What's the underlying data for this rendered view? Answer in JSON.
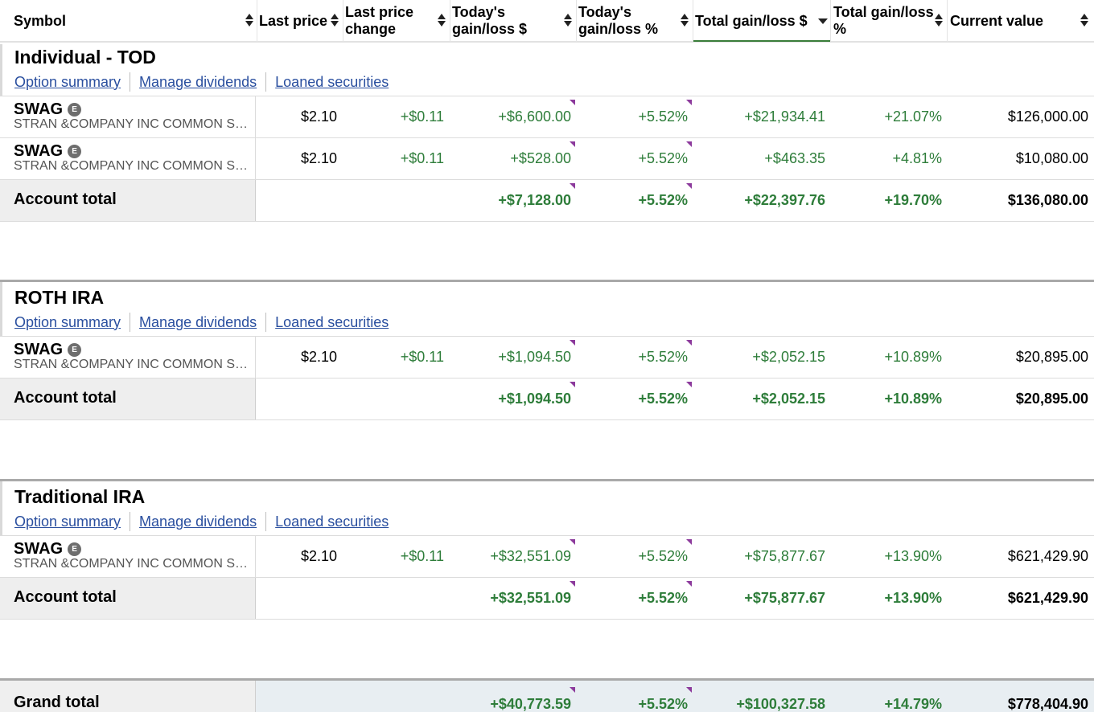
{
  "columns": [
    {
      "label": "Symbol",
      "sort": "both"
    },
    {
      "label": "Last price",
      "sort": "both"
    },
    {
      "label": "Last price change",
      "sort": "both"
    },
    {
      "label": "Today's gain/loss $",
      "sort": "both"
    },
    {
      "label": "Today's gain/loss %",
      "sort": "both"
    },
    {
      "label": "Total gain/loss $",
      "sort": "desc-active"
    },
    {
      "label": "Total gain/loss %",
      "sort": "both"
    },
    {
      "label": "Current value",
      "sort": "both"
    }
  ],
  "account_links": [
    "Option summary",
    "Manage dividends",
    "Loaned securities"
  ],
  "accounts": [
    {
      "name": "Individual - TOD",
      "positions": [
        {
          "symbol": "SWAG",
          "badge": "E",
          "description": "STRAN &COMPANY INC COMMON STOCK",
          "last_price": "$2.10",
          "last_price_change": "+$0.11",
          "today_gl": "+$6,600.00",
          "today_gl_pct": "+5.52%",
          "total_gl": "+$21,934.41",
          "total_gl_pct": "+21.07%",
          "current_value": "$126,000.00"
        },
        {
          "symbol": "SWAG",
          "badge": "E",
          "description": "STRAN &COMPANY INC COMMON STOCK",
          "last_price": "$2.10",
          "last_price_change": "+$0.11",
          "today_gl": "+$528.00",
          "today_gl_pct": "+5.52%",
          "total_gl": "+$463.35",
          "total_gl_pct": "+4.81%",
          "current_value": "$10,080.00"
        }
      ],
      "total": {
        "label": "Account total",
        "today_gl": "+$7,128.00",
        "today_gl_pct": "+5.52%",
        "total_gl": "+$22,397.76",
        "total_gl_pct": "+19.70%",
        "current_value": "$136,080.00"
      }
    },
    {
      "name": "ROTH IRA",
      "positions": [
        {
          "symbol": "SWAG",
          "badge": "E",
          "description": "STRAN &COMPANY INC COMMON STOCK",
          "last_price": "$2.10",
          "last_price_change": "+$0.11",
          "today_gl": "+$1,094.50",
          "today_gl_pct": "+5.52%",
          "total_gl": "+$2,052.15",
          "total_gl_pct": "+10.89%",
          "current_value": "$20,895.00"
        }
      ],
      "total": {
        "label": "Account total",
        "today_gl": "+$1,094.50",
        "today_gl_pct": "+5.52%",
        "total_gl": "+$2,052.15",
        "total_gl_pct": "+10.89%",
        "current_value": "$20,895.00"
      }
    },
    {
      "name": "Traditional IRA",
      "positions": [
        {
          "symbol": "SWAG",
          "badge": "E",
          "description": "STRAN &COMPANY INC COMMON STOCK",
          "last_price": "$2.10",
          "last_price_change": "+$0.11",
          "today_gl": "+$32,551.09",
          "today_gl_pct": "+5.52%",
          "total_gl": "+$75,877.67",
          "total_gl_pct": "+13.90%",
          "current_value": "$621,429.90"
        }
      ],
      "total": {
        "label": "Account total",
        "today_gl": "+$32,551.09",
        "today_gl_pct": "+5.52%",
        "total_gl": "+$75,877.67",
        "total_gl_pct": "+13.90%",
        "current_value": "$621,429.90"
      }
    }
  ],
  "grand_total": {
    "label": "Grand total",
    "today_gl": "+$40,773.59",
    "today_gl_pct": "+5.52%",
    "total_gl": "+$100,327.58",
    "total_gl_pct": "+14.79%",
    "current_value": "$778,404.90"
  },
  "colors": {
    "gain": "#2e7d3a",
    "link": "#2a4f9f",
    "flag": "#8c3a9c"
  }
}
